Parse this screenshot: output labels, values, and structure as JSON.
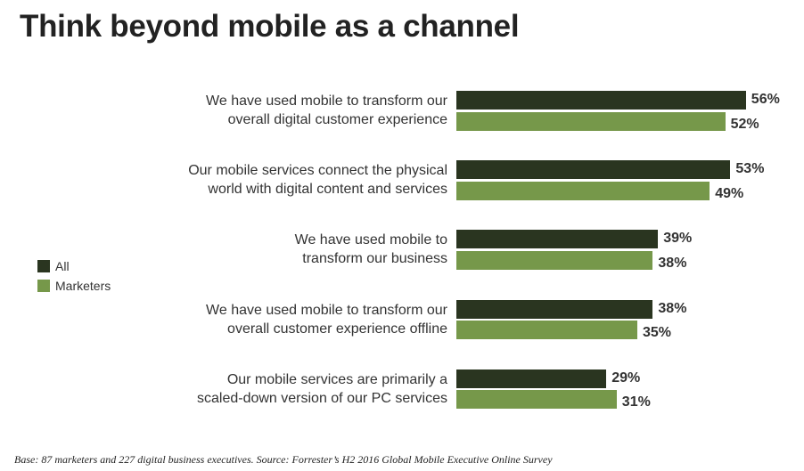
{
  "chart_data": {
    "type": "bar",
    "orientation": "horizontal",
    "title": "Think beyond mobile as a channel",
    "categories": [
      [
        "We have used mobile to transform our",
        "overall digital customer experience"
      ],
      [
        "Our mobile services connect the physical",
        "world with digital content and services"
      ],
      [
        "We have used mobile to",
        "transform our business"
      ],
      [
        "We have used mobile to transform our",
        "overall customer experience offline"
      ],
      [
        "Our mobile services are primarily a",
        "scaled-down version of our PC services"
      ]
    ],
    "series": [
      {
        "name": "All",
        "color": "#2a3520",
        "values": [
          56,
          53,
          39,
          38,
          29
        ]
      },
      {
        "name": "Marketers",
        "color": "#76984a",
        "values": [
          52,
          49,
          38,
          35,
          31
        ]
      }
    ],
    "value_suffix": "%",
    "legend_position": "left",
    "grid": false,
    "footnote": "Base: 87 marketers and 227 digital business executives. Source: Forrester’s H2 2016 Global Mobile Executive Online Survey"
  }
}
